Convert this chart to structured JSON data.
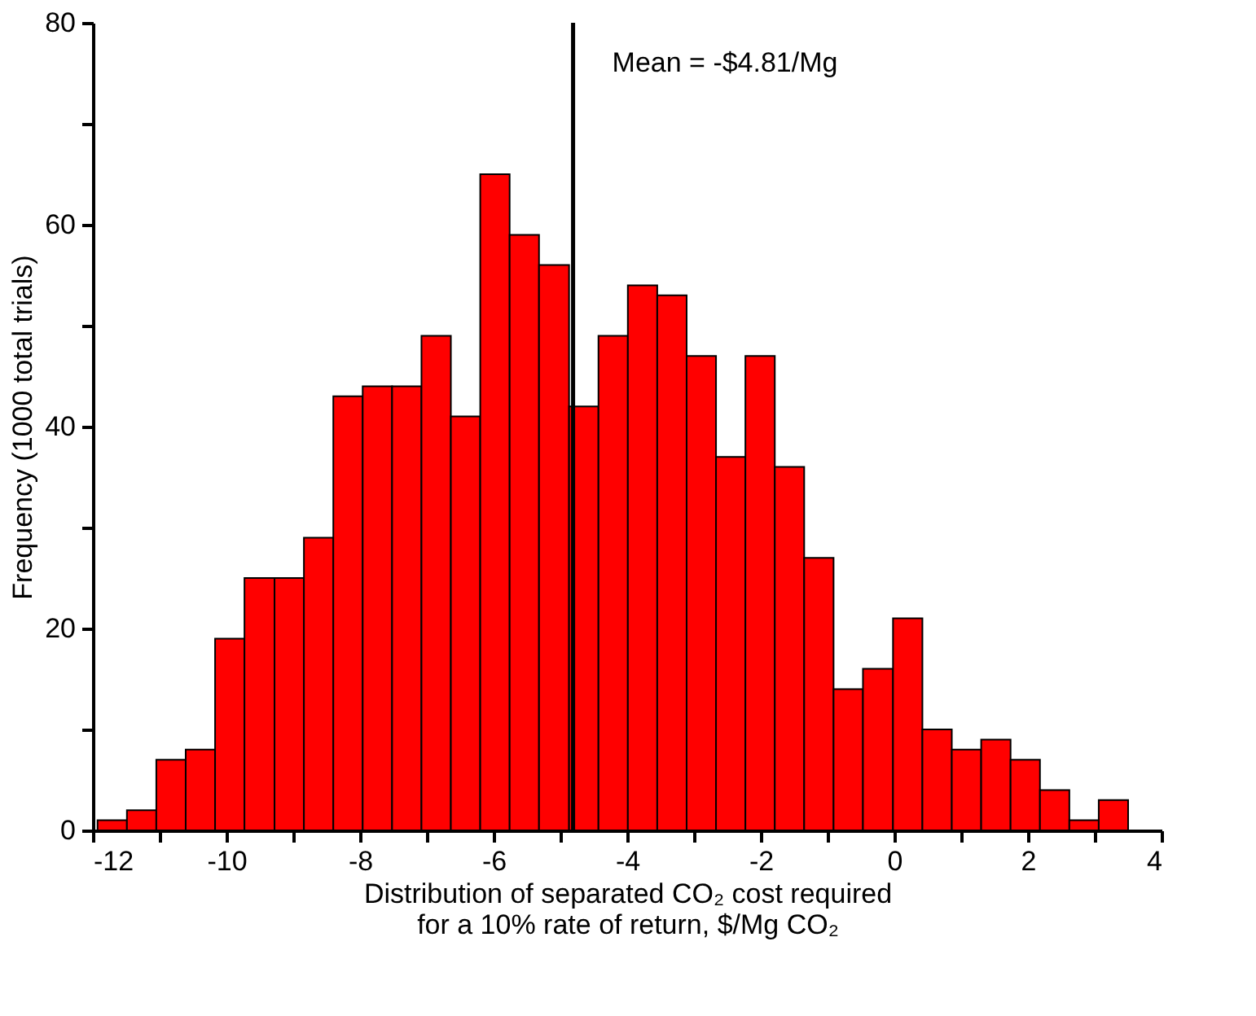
{
  "chart_data": {
    "type": "histogram",
    "xlabel": "Distribution of separated CO₂ cost required\nfor a 10% rate of return, $/Mg CO₂",
    "ylabel": "Frequency (1000 total trials)",
    "bins": [
      -11.93,
      -11.49,
      -11.05,
      -10.61,
      -10.17,
      -9.73,
      -9.28,
      -8.84,
      -8.4,
      -7.96,
      -7.52,
      -7.08,
      -6.64,
      -6.2,
      -5.76,
      -5.32,
      -4.87,
      -4.43,
      -3.99,
      -3.55,
      -3.11,
      -2.67,
      -2.23,
      -1.79,
      -1.35,
      -0.91,
      -0.47,
      -0.02,
      0.42,
      0.86,
      1.3,
      1.74,
      2.18,
      2.62,
      3.06,
      3.5
    ],
    "values": [
      1,
      2,
      7,
      8,
      19,
      25,
      25,
      29,
      43,
      44,
      44,
      49,
      41,
      65,
      59,
      56,
      42,
      49,
      54,
      53,
      47,
      37,
      47,
      36,
      27,
      14,
      16,
      21,
      10,
      8,
      9,
      7,
      4,
      1,
      3
    ],
    "color": "#ff0000",
    "xlim": [
      -12,
      4
    ],
    "xticks": [
      -12,
      {
        "value": -11,
        "label": null
      },
      -10,
      {
        "value": -9,
        "label": null
      },
      -8,
      {
        "value": -7,
        "label": null
      },
      -6,
      {
        "value": -5,
        "label": null
      },
      -4,
      {
        "value": -3,
        "label": null
      },
      -2,
      {
        "value": -1,
        "label": null
      },
      0,
      {
        "value": 1,
        "label": null
      },
      2,
      {
        "value": 3,
        "label": null
      },
      4
    ],
    "ylim": [
      0,
      80
    ],
    "yticks": [
      0,
      {
        "value": 10,
        "label": null
      },
      20,
      {
        "value": 30,
        "label": null
      },
      40,
      {
        "value": 50,
        "label": null
      },
      60,
      {
        "value": 70,
        "label": null
      },
      80
    ],
    "ref_lines": [
      {
        "axis": "x",
        "value": -4.81,
        "label": "Mean = -$4.81/Mg",
        "color": "#000000"
      }
    ],
    "grid": false
  }
}
